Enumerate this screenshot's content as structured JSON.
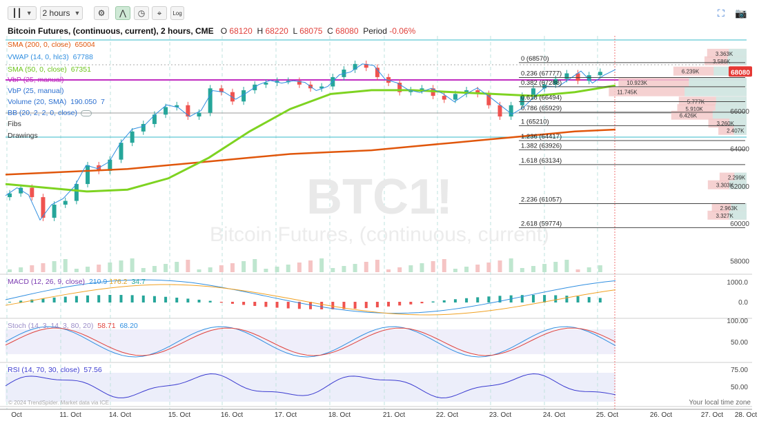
{
  "toolbar": {
    "chart_type_icon": "candles-icon",
    "interval": "2 hours",
    "settings_icon": "gear-icon",
    "indicator_icon": "indicators-icon",
    "clock_icon": "clock-icon",
    "draw_icon": "crosshair-icon",
    "log_label": "Log",
    "fullscreen_icon": "fullscreen-icon",
    "camera_icon": "camera-icon"
  },
  "header": {
    "title": "Bitcoin Futures, (continuous, current), 2 hours, CME",
    "o_label": "O",
    "o": "68120",
    "h_label": "H",
    "h": "68220",
    "l_label": "L",
    "l": "68075",
    "c_label": "C",
    "c": "68080",
    "period_label": "Period",
    "period": "-0.06%"
  },
  "legend": {
    "sma200": "SMA (200, 0, close)",
    "sma200_val": "65004",
    "vwap": "VWAP (14, 0, hlc3)",
    "vwap_val": "67788",
    "sma50": "SMA (50, 0, close)",
    "sma50_val": "67351",
    "vbp1": "VbP (25, manual)",
    "vbp2": "VbP (25, manual)",
    "volume": "Volume (20, SMA)",
    "volume_val": "190.050",
    "volume_val2": "7",
    "bb": "BB (20, 2, 2, 0, close)",
    "fibs": "Fibs",
    "drawings": "Drawings",
    "macd": "MACD (12, 26, 9, close)",
    "macd_v1": "210.9",
    "macd_v2": "176.2",
    "macd_v3": "34.7",
    "stoch": "Stoch (14, 3, 14, 3, 80, 20)",
    "stoch_v1": "58.71",
    "stoch_v2": "68.20",
    "rsi": "RSI (14, 70, 30, close)",
    "rsi_v": "57.56"
  },
  "colors": {
    "up": "#26a69a",
    "down": "#ef5350",
    "sma200": "#e0560b",
    "sma50": "#7ed321",
    "vwap": "#2f8ee0",
    "vbp_line": "#c02bc0",
    "macd": "#2f8ee0",
    "signal": "#f0a020",
    "stoch_k": "#2f8ee0",
    "stoch_d": "#e0413b",
    "rsi": "#3a3ad0"
  },
  "watermark": {
    "symbol": "BTC1!",
    "name": "Bitcoin Futures, (continuous, current)"
  },
  "footer": {
    "credit": "© 2024 TrendSpider. Market data via ICE",
    "local_time": "Your local time zone"
  },
  "chart_data": {
    "type": "candlestick",
    "x_labels": [
      "Oct",
      "11. Oct",
      "14. Oct",
      "15. Oct",
      "16. Oct",
      "17. Oct",
      "18. Oct",
      "21. Oct",
      "22. Oct",
      "23. Oct",
      "24. Oct",
      "25. Oct",
      "26. Oct",
      "27. Oct",
      "28. Oct"
    ],
    "price_axis": {
      "ticks": [
        58000,
        60000,
        62000,
        64000,
        66000
      ],
      "ylim": [
        57400,
        70000
      ],
      "last_price": "68080"
    },
    "ohlc_close_path": [
      61600,
      61900,
      61400,
      60300,
      61000,
      61200,
      62100,
      63100,
      62800,
      63400,
      64300,
      64900,
      65300,
      65800,
      66200,
      66300,
      65700,
      65900,
      67200,
      67000,
      66500,
      67100,
      67400,
      67500,
      67600,
      67600,
      67400,
      67200,
      67300,
      67800,
      68200,
      68500,
      68300,
      67800,
      67500,
      67000,
      67100,
      67200,
      66800,
      66600,
      66900,
      67100,
      66900,
      66300,
      65700,
      66300,
      66800,
      67200,
      67400,
      67700,
      68000,
      67600,
      67900,
      68080
    ],
    "sma200": [
      62600,
      62700,
      62800,
      62900,
      63100,
      63300,
      63500,
      63700,
      63800,
      63900,
      64100,
      64300,
      64500,
      64700,
      64900,
      65004
    ],
    "sma50": [
      62100,
      61900,
      61700,
      61800,
      62400,
      63500,
      64900,
      66100,
      66900,
      67100,
      67100,
      67000,
      66900,
      66800,
      67000,
      67351
    ],
    "fibs": [
      {
        "ratio": "0",
        "price": "68570"
      },
      {
        "ratio": "0.236",
        "price": "67777"
      },
      {
        "ratio": "0.382",
        "price": "67288"
      },
      {
        "ratio": "0.618",
        "price": "66494"
      },
      {
        "ratio": "0.786",
        "price": "65929"
      },
      {
        "ratio": "1",
        "price": "65210"
      },
      {
        "ratio": "1.236",
        "price": "64417"
      },
      {
        "ratio": "1.382",
        "price": "63926"
      },
      {
        "ratio": "1.618",
        "price": "63134"
      },
      {
        "ratio": "2.236",
        "price": "61057"
      },
      {
        "ratio": "2.618",
        "price": "59774"
      }
    ],
    "vbp_labels": [
      {
        "label": "3.363K",
        "price": 69050
      },
      {
        "label": "3.586K",
        "price": 68650
      },
      {
        "label": "6.239K",
        "price": 68100
      },
      {
        "label": "10.923K",
        "price": 67500
      },
      {
        "label": "11.745K",
        "price": 67000
      },
      {
        "label": "5.777K",
        "price": 66500
      },
      {
        "label": "5.910K",
        "price": 66100
      },
      {
        "label": "6.426K",
        "price": 65750
      },
      {
        "label": "3.260K",
        "price": 65330
      },
      {
        "label": "2.407K",
        "price": 64940
      },
      {
        "label": "2.299K",
        "price": 62450
      },
      {
        "label": "3.303K",
        "price": 62040
      },
      {
        "label": "2.963K",
        "price": 60820
      },
      {
        "label": "3.327K",
        "price": 60420
      }
    ],
    "macd_axis": [
      "1000.0",
      "0.0"
    ],
    "stoch_axis": [
      "100.00",
      "50.00"
    ],
    "rsi_axis": [
      "75.00",
      "50.00"
    ]
  }
}
